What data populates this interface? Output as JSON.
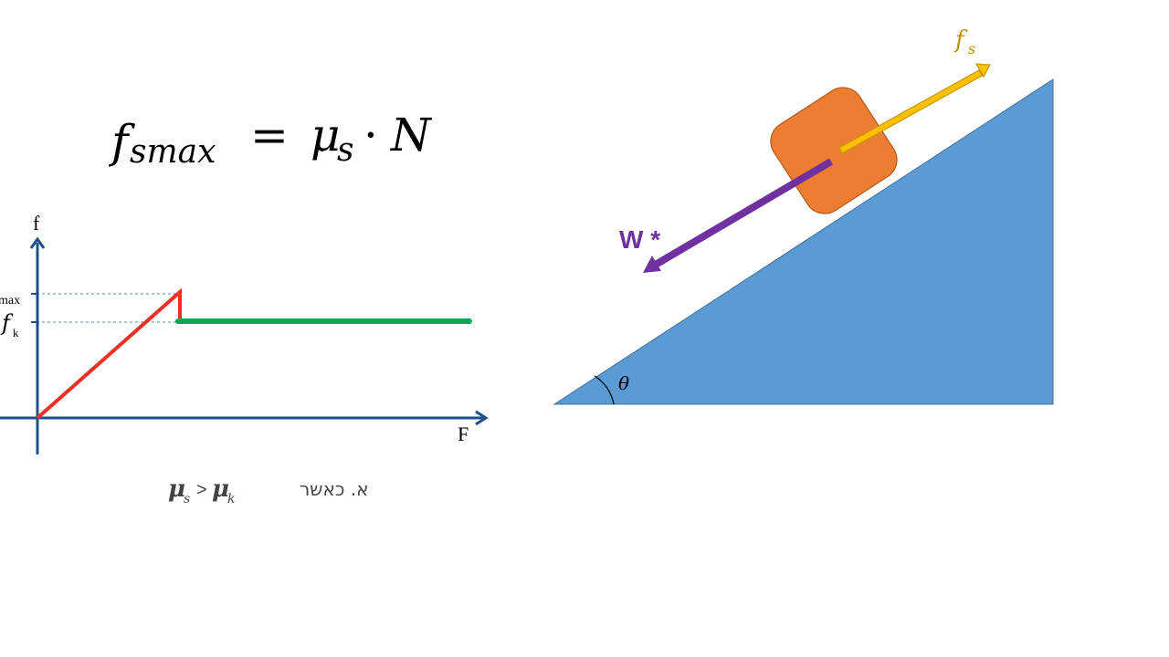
{
  "formula": {
    "f": "f",
    "f_sub": "smax",
    "eq": "=",
    "mu": "μ",
    "mu_sub": "s",
    "dot": "·",
    "N": "N"
  },
  "graph": {
    "y_axis_label": "f",
    "x_axis_label": "F",
    "tick_fsmax_sub": "max",
    "tick_fk": "f",
    "tick_fk_sub": "k",
    "caption_rtl_text": "א. כאשר",
    "caption_mu": "μ",
    "caption_mu_s_sub": "s",
    "caption_gt": ">",
    "caption_mu_k_sub": "k",
    "colors": {
      "axis": "#1f4e8c",
      "static": "#ee3124",
      "kinetic": "#00a651",
      "guide": "#3c9a8c"
    }
  },
  "incline": {
    "friction_label": "f",
    "friction_sub": "s",
    "weight_label": "W *",
    "angle_label": "θ",
    "colors": {
      "ramp": "#5b9bd5",
      "block": "#ed7d31",
      "block_stroke": "#b45a1e",
      "friction_arrow": "#ffc000",
      "friction_arrow_stroke": "#c59a00",
      "friction_text": "#bf9000",
      "weight_arrow": "#7030a0"
    }
  }
}
